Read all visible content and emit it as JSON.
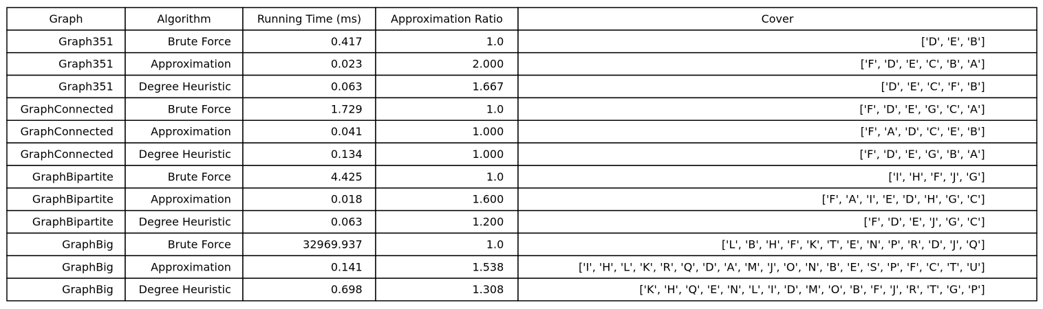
{
  "table": {
    "columns": [
      "Graph",
      "Algorithm",
      "Running Time (ms)",
      "Approximation Ratio",
      "Cover"
    ],
    "rows": [
      [
        "Graph351",
        "Brute Force",
        "0.417",
        "1.0",
        "['D', 'E', 'B']"
      ],
      [
        "Graph351",
        "Approximation",
        "0.023",
        "2.000",
        "['F', 'D', 'E', 'C', 'B', 'A']"
      ],
      [
        "Graph351",
        "Degree Heuristic",
        "0.063",
        "1.667",
        "['D', 'E', 'C', 'F', 'B']"
      ],
      [
        "GraphConnected",
        "Brute Force",
        "1.729",
        "1.0",
        "['F', 'D', 'E', 'G', 'C', 'A']"
      ],
      [
        "GraphConnected",
        "Approximation",
        "0.041",
        "1.000",
        "['F', 'A', 'D', 'C', 'E', 'B']"
      ],
      [
        "GraphConnected",
        "Degree Heuristic",
        "0.134",
        "1.000",
        "['F', 'D', 'E', 'G', 'B', 'A']"
      ],
      [
        "GraphBipartite",
        "Brute Force",
        "4.425",
        "1.0",
        "['I', 'H', 'F', 'J', 'G']"
      ],
      [
        "GraphBipartite",
        "Approximation",
        "0.018",
        "1.600",
        "['F', 'A', 'I', 'E', 'D', 'H', 'G', 'C']"
      ],
      [
        "GraphBipartite",
        "Degree Heuristic",
        "0.063",
        "1.200",
        "['F', 'D', 'E', 'J', 'G', 'C']"
      ],
      [
        "GraphBig",
        "Brute Force",
        "32969.937",
        "1.0",
        "['L', 'B', 'H', 'F', 'K', 'T', 'E', 'N', 'P', 'R', 'D', 'J', 'Q']"
      ],
      [
        "GraphBig",
        "Approximation",
        "0.141",
        "1.538",
        "['I', 'H', 'L', 'K', 'R', 'Q', 'D', 'A', 'M', 'J', 'O', 'N', 'B', 'E', 'S', 'P', 'F', 'C', 'T', 'U']"
      ],
      [
        "GraphBig",
        "Degree Heuristic",
        "0.698",
        "1.308",
        "['K', 'H', 'Q', 'E', 'N', 'L', 'I', 'D', 'M', 'O', 'B', 'F', 'J', 'R', 'T', 'G', 'P']"
      ]
    ]
  }
}
